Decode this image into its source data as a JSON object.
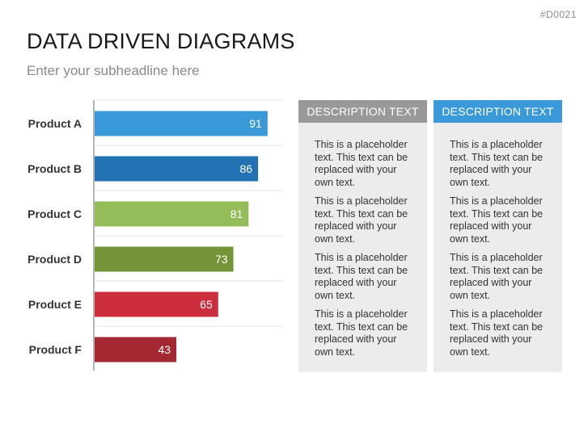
{
  "slide_id": "#D0021",
  "title": "DATA DRIVEN DIAGRAMS",
  "subtitle": "Enter your subheadline here",
  "colors": {
    "desc_header_gray": "#999999",
    "desc_header_blue": "#3a9ad9",
    "desc_body": "#ececec"
  },
  "chart_data": {
    "type": "bar",
    "orientation": "horizontal",
    "categories": [
      "Product A",
      "Product B",
      "Product C",
      "Product D",
      "Product E",
      "Product F"
    ],
    "values": [
      91,
      86,
      81,
      73,
      65,
      43
    ],
    "colors": [
      "#3a9ad9",
      "#2272b4",
      "#94bd5a",
      "#749438",
      "#cc2e3d",
      "#a32832"
    ],
    "xlim": [
      0,
      100
    ],
    "data_labels": true,
    "grid": "horizontal separators"
  },
  "descriptions": [
    {
      "header": "DESCRIPTION TEXT",
      "header_color": "#999999",
      "paragraphs": [
        "This is a placeholder text. This text can be replaced with your own text.",
        "This is a placeholder text. This text can be replaced with your own text.",
        "This is a placeholder text. This text can be replaced with your own text.",
        "This is a placeholder text. This text can be replaced with your own text."
      ]
    },
    {
      "header": "DESCRIPTION TEXT",
      "header_color": "#3a9ad9",
      "paragraphs": [
        "This is a placeholder text. This text can be replaced with your own text.",
        "This is a placeholder text. This text can be replaced with your own text.",
        "This is a placeholder text. This text can be replaced with your own text.",
        "This is a placeholder text. This text can be replaced with your own text."
      ]
    }
  ]
}
